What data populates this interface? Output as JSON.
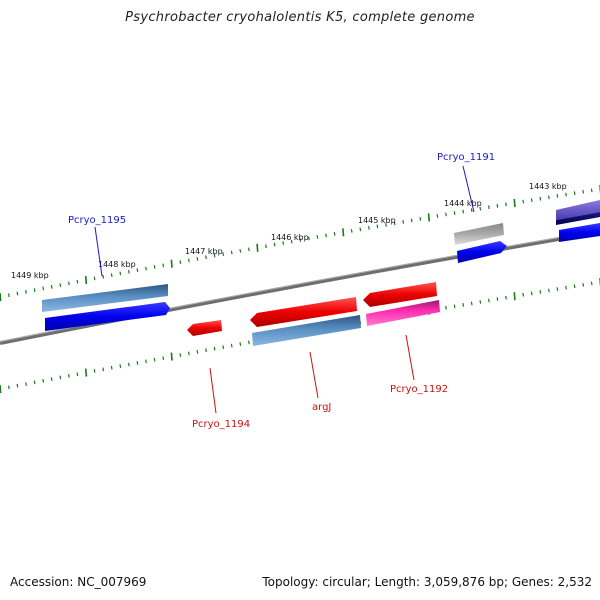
{
  "title": "Psychrobacter cryohalolentis K5, complete genome",
  "footer": {
    "accession": "Accession: NC_007969",
    "summary": "Topology: circular; Length: 3,059,876 bp; Genes: 2,532"
  },
  "scale_labels": [
    "1443 kbp",
    "1444 kbp",
    "1445 kbp",
    "1446 kbp",
    "1447 kbp",
    "1448 kbp",
    "1449 kbp"
  ],
  "gene_labels": {
    "pcryo_1191": "Pcryo_1191",
    "pcryo_1195": "Pcryo_1195",
    "pcryo_1194": "Pcryo_1194",
    "argj": "argJ",
    "pcryo_1192": "Pcryo_1192"
  },
  "colors": {
    "forward_label": "#1a1acc",
    "reverse_label": "#cc1111",
    "tick": "#1a7a1a",
    "backbone": "#777777"
  }
}
